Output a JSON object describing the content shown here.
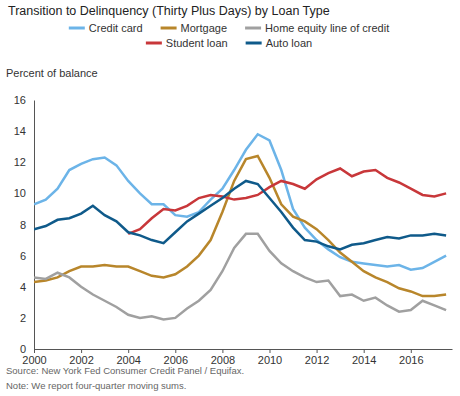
{
  "chart_data": {
    "type": "line",
    "title": "Transition to Delinquency (Thirty Plus Days) by Loan Type",
    "y_label": "Percent of balance",
    "annotations": [
      "Source: New York Fed Consumer Credit Panel / Equifax.",
      "Note: We report four-quarter moving sums."
    ],
    "legend": "top",
    "grid": false,
    "x": [
      2000,
      2000.5,
      2001,
      2001.5,
      2002,
      2002.5,
      2003,
      2003.5,
      2004,
      2004.5,
      2005,
      2005.5,
      2006,
      2006.5,
      2007,
      2007.5,
      2008,
      2008.5,
      2009,
      2009.5,
      2010,
      2010.5,
      2011,
      2011.5,
      2012,
      2012.5,
      2013,
      2013.5,
      2014,
      2014.5,
      2015,
      2015.5,
      2016,
      2016.5,
      2017,
      2017.5
    ],
    "xlim": [
      2000,
      2017.75
    ],
    "xticks": [
      2000,
      2002,
      2004,
      2006,
      2008,
      2010,
      2012,
      2014,
      2016
    ],
    "ylim": [
      0,
      16
    ],
    "yticks": [
      0,
      2,
      4,
      6,
      8,
      10,
      12,
      14,
      16
    ],
    "series": [
      {
        "name": "Credit card",
        "color": "#6cb4e8",
        "values": [
          9.3,
          9.6,
          10.3,
          11.5,
          11.9,
          12.2,
          12.3,
          11.8,
          10.8,
          10.0,
          9.3,
          9.3,
          8.6,
          8.5,
          8.8,
          9.6,
          10.3,
          11.5,
          12.8,
          13.8,
          13.4,
          11.5,
          9.0,
          7.8,
          7.0,
          6.4,
          5.9,
          5.6,
          5.5,
          5.4,
          5.3,
          5.4,
          5.1,
          5.2,
          5.6,
          6.0
        ]
      },
      {
        "name": "Mortgage",
        "color": "#b8862b",
        "values": [
          4.3,
          4.4,
          4.6,
          5.0,
          5.3,
          5.3,
          5.4,
          5.3,
          5.3,
          5.0,
          4.7,
          4.6,
          4.8,
          5.3,
          6.0,
          7.0,
          8.8,
          10.8,
          12.2,
          12.4,
          11.0,
          9.3,
          8.5,
          8.2,
          7.7,
          7.0,
          6.2,
          5.6,
          5.0,
          4.6,
          4.3,
          3.9,
          3.7,
          3.4,
          3.4,
          3.5
        ]
      },
      {
        "name": "Home equity line of credit",
        "color": "#a0a0a0",
        "values": [
          4.6,
          4.5,
          4.9,
          4.6,
          4.0,
          3.5,
          3.1,
          2.7,
          2.2,
          2.0,
          2.1,
          1.9,
          2.0,
          2.6,
          3.1,
          3.8,
          5.0,
          6.5,
          7.4,
          7.4,
          6.3,
          5.5,
          5.0,
          4.6,
          4.3,
          4.4,
          3.4,
          3.5,
          3.1,
          3.3,
          2.8,
          2.4,
          2.5,
          3.1,
          2.8,
          2.5
        ]
      },
      {
        "name": "Student loan",
        "color": "#c8373a",
        "values": [
          null,
          null,
          null,
          null,
          null,
          null,
          null,
          null,
          7.4,
          7.7,
          8.4,
          9.0,
          8.9,
          9.2,
          9.7,
          9.9,
          9.8,
          9.6,
          9.7,
          9.9,
          10.4,
          10.8,
          10.6,
          10.3,
          10.9,
          11.3,
          11.6,
          11.1,
          11.4,
          11.5,
          11.0,
          10.7,
          10.3,
          9.9,
          9.8,
          10.0
        ]
      },
      {
        "name": "Auto loan",
        "color": "#0f5a8a",
        "values": [
          7.7,
          7.9,
          8.3,
          8.4,
          8.7,
          9.2,
          8.6,
          8.2,
          7.5,
          7.3,
          7.0,
          6.8,
          7.5,
          8.2,
          8.7,
          9.2,
          9.7,
          10.3,
          10.8,
          10.6,
          9.7,
          8.8,
          7.8,
          7.0,
          6.9,
          6.6,
          6.4,
          6.7,
          6.8,
          7.0,
          7.2,
          7.1,
          7.3,
          7.3,
          7.4,
          7.3
        ]
      }
    ]
  }
}
